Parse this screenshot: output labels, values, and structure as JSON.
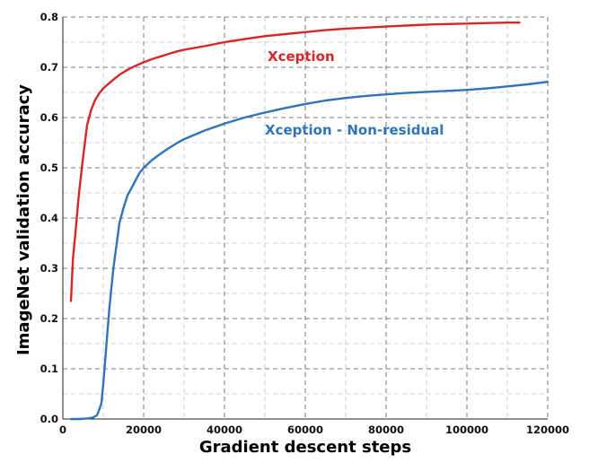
{
  "chart_data": {
    "type": "line",
    "xlabel": "Gradient descent steps",
    "ylabel": "ImageNet validation accuracy",
    "xlim": [
      0,
      120000
    ],
    "ylim": [
      0,
      0.8
    ],
    "x_ticks": [
      0,
      20000,
      40000,
      60000,
      80000,
      100000,
      120000
    ],
    "x_tick_labels": [
      "0",
      "20000",
      "40000",
      "60000",
      "80000",
      "100000",
      "120000"
    ],
    "y_ticks": [
      0.0,
      0.1,
      0.2,
      0.3,
      0.4,
      0.5,
      0.6,
      0.7,
      0.8
    ],
    "y_tick_labels": [
      "0.0",
      "0.1",
      "0.2",
      "0.3",
      "0.4",
      "0.5",
      "0.6",
      "0.7",
      "0.8"
    ],
    "grid": true,
    "legend": "inline labels next to the curves",
    "series": [
      {
        "name": "Xception",
        "color": "#d62728",
        "x": [
          2000,
          2500,
          3000,
          4000,
          5000,
          6000,
          7000,
          8000,
          9000,
          10000,
          12000,
          14000,
          16000,
          18000,
          20000,
          22000,
          24000,
          26000,
          28000,
          30000,
          35000,
          40000,
          45000,
          50000,
          55000,
          60000,
          65000,
          70000,
          75000,
          80000,
          85000,
          90000,
          95000,
          100000,
          105000,
          110000,
          113000
        ],
        "y": [
          0.235,
          0.32,
          0.36,
          0.45,
          0.52,
          0.585,
          0.615,
          0.635,
          0.648,
          0.658,
          0.672,
          0.685,
          0.695,
          0.703,
          0.71,
          0.716,
          0.721,
          0.726,
          0.731,
          0.735,
          0.742,
          0.75,
          0.756,
          0.762,
          0.766,
          0.77,
          0.774,
          0.777,
          0.779,
          0.781,
          0.783,
          0.785,
          0.786,
          0.787,
          0.788,
          0.789,
          0.789
        ]
      },
      {
        "name": "Xception - Non-residual",
        "color": "#2f75b5",
        "x": [
          2000,
          4000,
          6000,
          7500,
          8500,
          9500,
          10000,
          10500,
          11000,
          11500,
          12000,
          12500,
          13000,
          13500,
          14000,
          15000,
          16000,
          17000,
          18000,
          19000,
          20000,
          22000,
          24000,
          26000,
          28000,
          30000,
          35000,
          40000,
          45000,
          50000,
          55000,
          60000,
          65000,
          70000,
          75000,
          80000,
          85000,
          90000,
          95000,
          100000,
          105000,
          110000,
          115000,
          120000
        ],
        "y": [
          0.0,
          0.0,
          0.001,
          0.003,
          0.008,
          0.03,
          0.07,
          0.12,
          0.17,
          0.22,
          0.26,
          0.3,
          0.33,
          0.36,
          0.39,
          0.42,
          0.445,
          0.46,
          0.475,
          0.49,
          0.5,
          0.515,
          0.527,
          0.538,
          0.548,
          0.557,
          0.574,
          0.588,
          0.6,
          0.61,
          0.619,
          0.627,
          0.634,
          0.639,
          0.643,
          0.646,
          0.649,
          0.651,
          0.653,
          0.655,
          0.658,
          0.662,
          0.666,
          0.671
        ]
      }
    ]
  }
}
